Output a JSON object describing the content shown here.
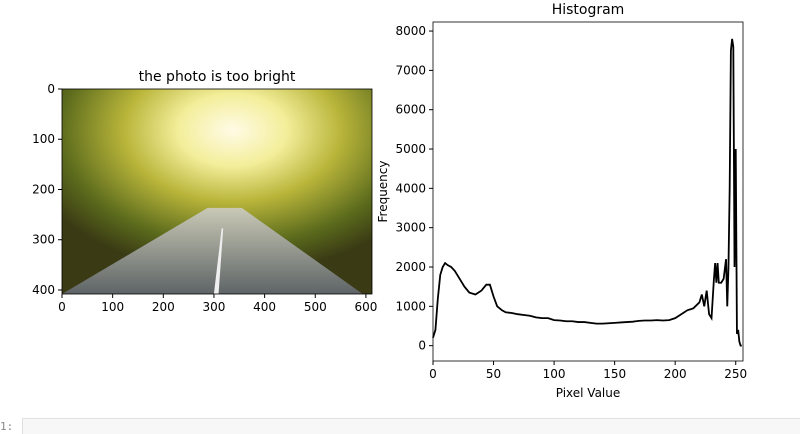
{
  "chart_data": [
    {
      "type": "image",
      "title": "the photo is too bright",
      "xlim": [
        0,
        612
      ],
      "ylim": [
        408,
        0
      ],
      "xticks": [
        0,
        100,
        200,
        300,
        400,
        500,
        600
      ],
      "yticks": [
        0,
        100,
        200,
        300,
        400
      ]
    },
    {
      "type": "line",
      "title": "Histogram",
      "xlabel": "Pixel Value",
      "ylabel": "Frequency",
      "color": "#000000",
      "xlim": [
        0,
        256
      ],
      "ylim": [
        -390,
        8230
      ],
      "xticks": [
        0,
        50,
        100,
        150,
        200,
        250
      ],
      "yticks": [
        0,
        1000,
        2000,
        3000,
        4000,
        5000,
        6000,
        7000,
        8000
      ],
      "x": [
        0,
        2,
        4,
        6,
        8,
        10,
        12,
        15,
        18,
        22,
        26,
        30,
        35,
        40,
        44,
        47,
        50,
        53,
        57,
        60,
        65,
        70,
        75,
        80,
        85,
        90,
        95,
        100,
        105,
        110,
        115,
        120,
        125,
        130,
        135,
        140,
        145,
        150,
        155,
        160,
        165,
        170,
        175,
        180,
        185,
        190,
        195,
        200,
        205,
        210,
        215,
        220,
        222,
        224,
        226,
        228,
        230,
        232,
        233,
        234,
        235,
        236,
        238,
        240,
        242,
        243,
        244,
        245,
        246,
        247,
        248,
        249,
        250,
        251,
        252,
        253,
        254,
        255
      ],
      "values": [
        200,
        400,
        1200,
        1800,
        2000,
        2100,
        2050,
        2000,
        1900,
        1700,
        1500,
        1350,
        1300,
        1400,
        1550,
        1550,
        1250,
        1000,
        900,
        850,
        830,
        800,
        780,
        760,
        720,
        700,
        700,
        650,
        640,
        620,
        620,
        600,
        600,
        580,
        560,
        560,
        570,
        580,
        590,
        600,
        610,
        630,
        640,
        640,
        650,
        640,
        650,
        700,
        800,
        900,
        950,
        1100,
        1300,
        1000,
        1400,
        800,
        700,
        1700,
        2100,
        1600,
        2100,
        1600,
        1600,
        1700,
        2200,
        1000,
        2000,
        4000,
        7500,
        7800,
        7600,
        2000,
        5000,
        300,
        400,
        100,
        0,
        0
      ]
    }
  ],
  "cell_prompt": "1:"
}
